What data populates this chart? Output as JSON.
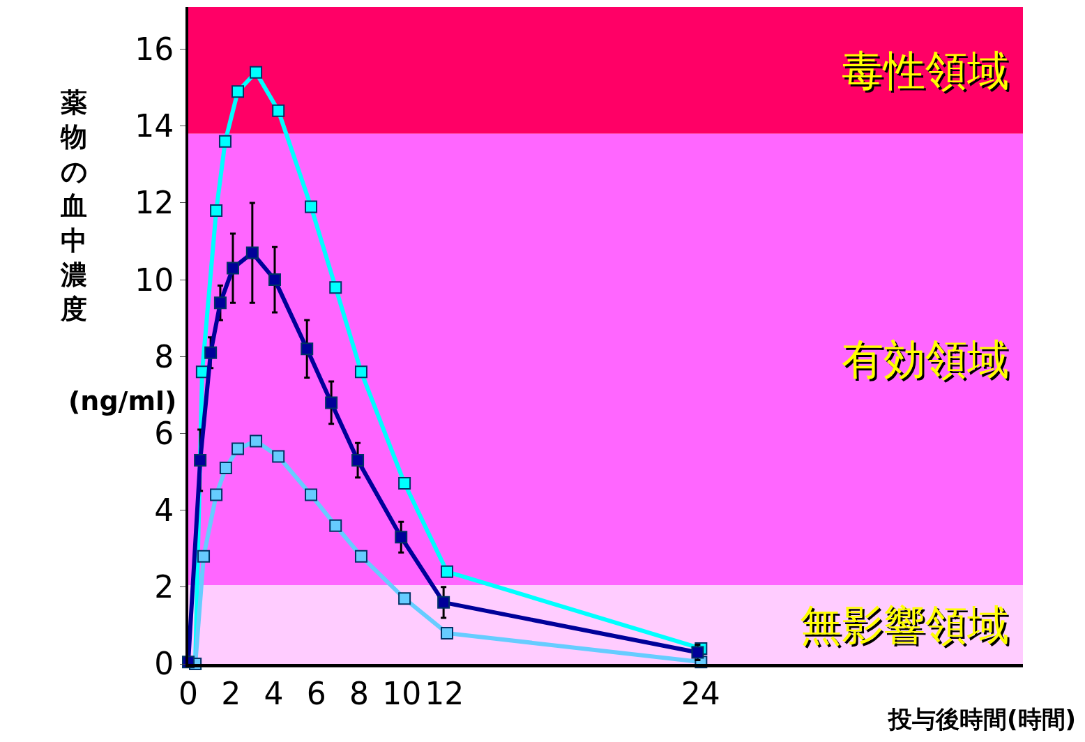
{
  "chart_data": {
    "type": "line",
    "xlabel": "投与後時間(時間)",
    "ylabel": "薬物の血中濃度 (ng/ml)",
    "series": [
      {
        "color": "#00ffff",
        "x": [
          0.33,
          0.65,
          1.31,
          1.73,
          2.32,
          3.17,
          4.22,
          5.75,
          6.9,
          8.1,
          10.13,
          12.12,
          24.02
        ],
        "values": [
          0,
          7.6,
          11.8,
          13.6,
          14.9,
          15.4,
          14.4,
          11.9,
          9.8,
          7.6,
          4.7,
          2.4,
          0.4
        ]
      },
      {
        "color": "#66ccff",
        "x": [
          0.33,
          0.72,
          1.31,
          1.76,
          2.32,
          3.17,
          4.22,
          5.75,
          6.9,
          8.1,
          10.13,
          12.12,
          24.02
        ],
        "values": [
          0,
          2.8,
          4.4,
          5.1,
          5.6,
          5.8,
          5.4,
          4.4,
          3.6,
          2.8,
          1.7,
          0.8,
          0.05
        ]
      },
      {
        "color": "#000099",
        "x": [
          0,
          0.56,
          1.05,
          1.5,
          2.09,
          3.0,
          4.05,
          5.56,
          6.7,
          7.94,
          9.97,
          11.96,
          23.86
        ],
        "values": [
          0.05,
          5.3,
          8.1,
          9.4,
          10.3,
          10.7,
          10.0,
          8.2,
          6.8,
          5.3,
          3.3,
          1.6,
          0.3
        ],
        "errors": [
          null,
          0.8,
          0.4,
          0.45,
          0.9,
          1.3,
          0.85,
          0.75,
          0.55,
          0.45,
          0.4,
          0.4,
          0.2
        ]
      }
    ],
    "xlim": [
      0,
      39.1
    ],
    "ylim": [
      0,
      17.1
    ],
    "xticks": [
      0,
      2,
      4,
      6,
      8,
      10,
      12,
      24
    ],
    "yticks": [
      0,
      2,
      4,
      6,
      8,
      10,
      12,
      14,
      16
    ],
    "bands": [
      {
        "axis": "y",
        "from": 13.8,
        "to": 17.1,
        "label": "毒性領域",
        "color": "#ff0066"
      },
      {
        "axis": "y",
        "from": 2.05,
        "to": 13.8,
        "label": "有効領域",
        "color": "#ff66ff"
      },
      {
        "axis": "y",
        "from": 0,
        "to": 2.05,
        "label": "無影響領域",
        "color": "#ffccff"
      }
    ],
    "marker": "square",
    "grid": false,
    "legend": false
  }
}
